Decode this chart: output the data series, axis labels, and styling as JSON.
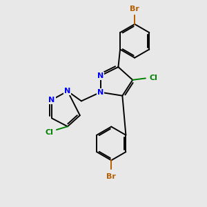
{
  "background_color": "#e8e8e8",
  "bond_color": "#000000",
  "N_color": "#0000ff",
  "Br_color": "#b85c00",
  "Cl_color": "#008000",
  "bond_width": 1.4,
  "figsize": [
    3.0,
    3.0
  ],
  "dpi": 100,
  "xlim": [
    0,
    10
  ],
  "ylim": [
    0,
    10
  ],
  "font_size": 8.0
}
